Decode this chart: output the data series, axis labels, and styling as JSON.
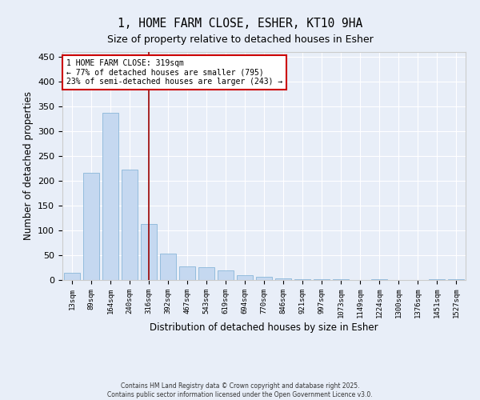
{
  "title": "1, HOME FARM CLOSE, ESHER, KT10 9HA",
  "subtitle": "Size of property relative to detached houses in Esher",
  "xlabel": "Distribution of detached houses by size in Esher",
  "ylabel": "Number of detached properties",
  "categories": [
    "13sqm",
    "89sqm",
    "164sqm",
    "240sqm",
    "316sqm",
    "392sqm",
    "467sqm",
    "543sqm",
    "619sqm",
    "694sqm",
    "770sqm",
    "846sqm",
    "921sqm",
    "997sqm",
    "1073sqm",
    "1149sqm",
    "1224sqm",
    "1300sqm",
    "1376sqm",
    "1451sqm",
    "1527sqm"
  ],
  "values": [
    14,
    216,
    338,
    222,
    113,
    54,
    27,
    26,
    19,
    9,
    6,
    3,
    1,
    1,
    1,
    0,
    1,
    0,
    0,
    1,
    2
  ],
  "bar_color": "#c5d8f0",
  "bar_edge_color": "#7aadd4",
  "vline_x": 4,
  "vline_color": "#990000",
  "annotation_text": "1 HOME FARM CLOSE: 319sqm\n← 77% of detached houses are smaller (795)\n23% of semi-detached houses are larger (243) →",
  "annotation_box_color": "#ffffff",
  "annotation_border_color": "#cc0000",
  "ylim": [
    0,
    460
  ],
  "yticks": [
    0,
    50,
    100,
    150,
    200,
    250,
    300,
    350,
    400,
    450
  ],
  "background_color": "#e8eef8",
  "grid_color": "#ffffff",
  "footer_line1": "Contains HM Land Registry data © Crown copyright and database right 2025.",
  "footer_line2": "Contains public sector information licensed under the Open Government Licence v3.0."
}
